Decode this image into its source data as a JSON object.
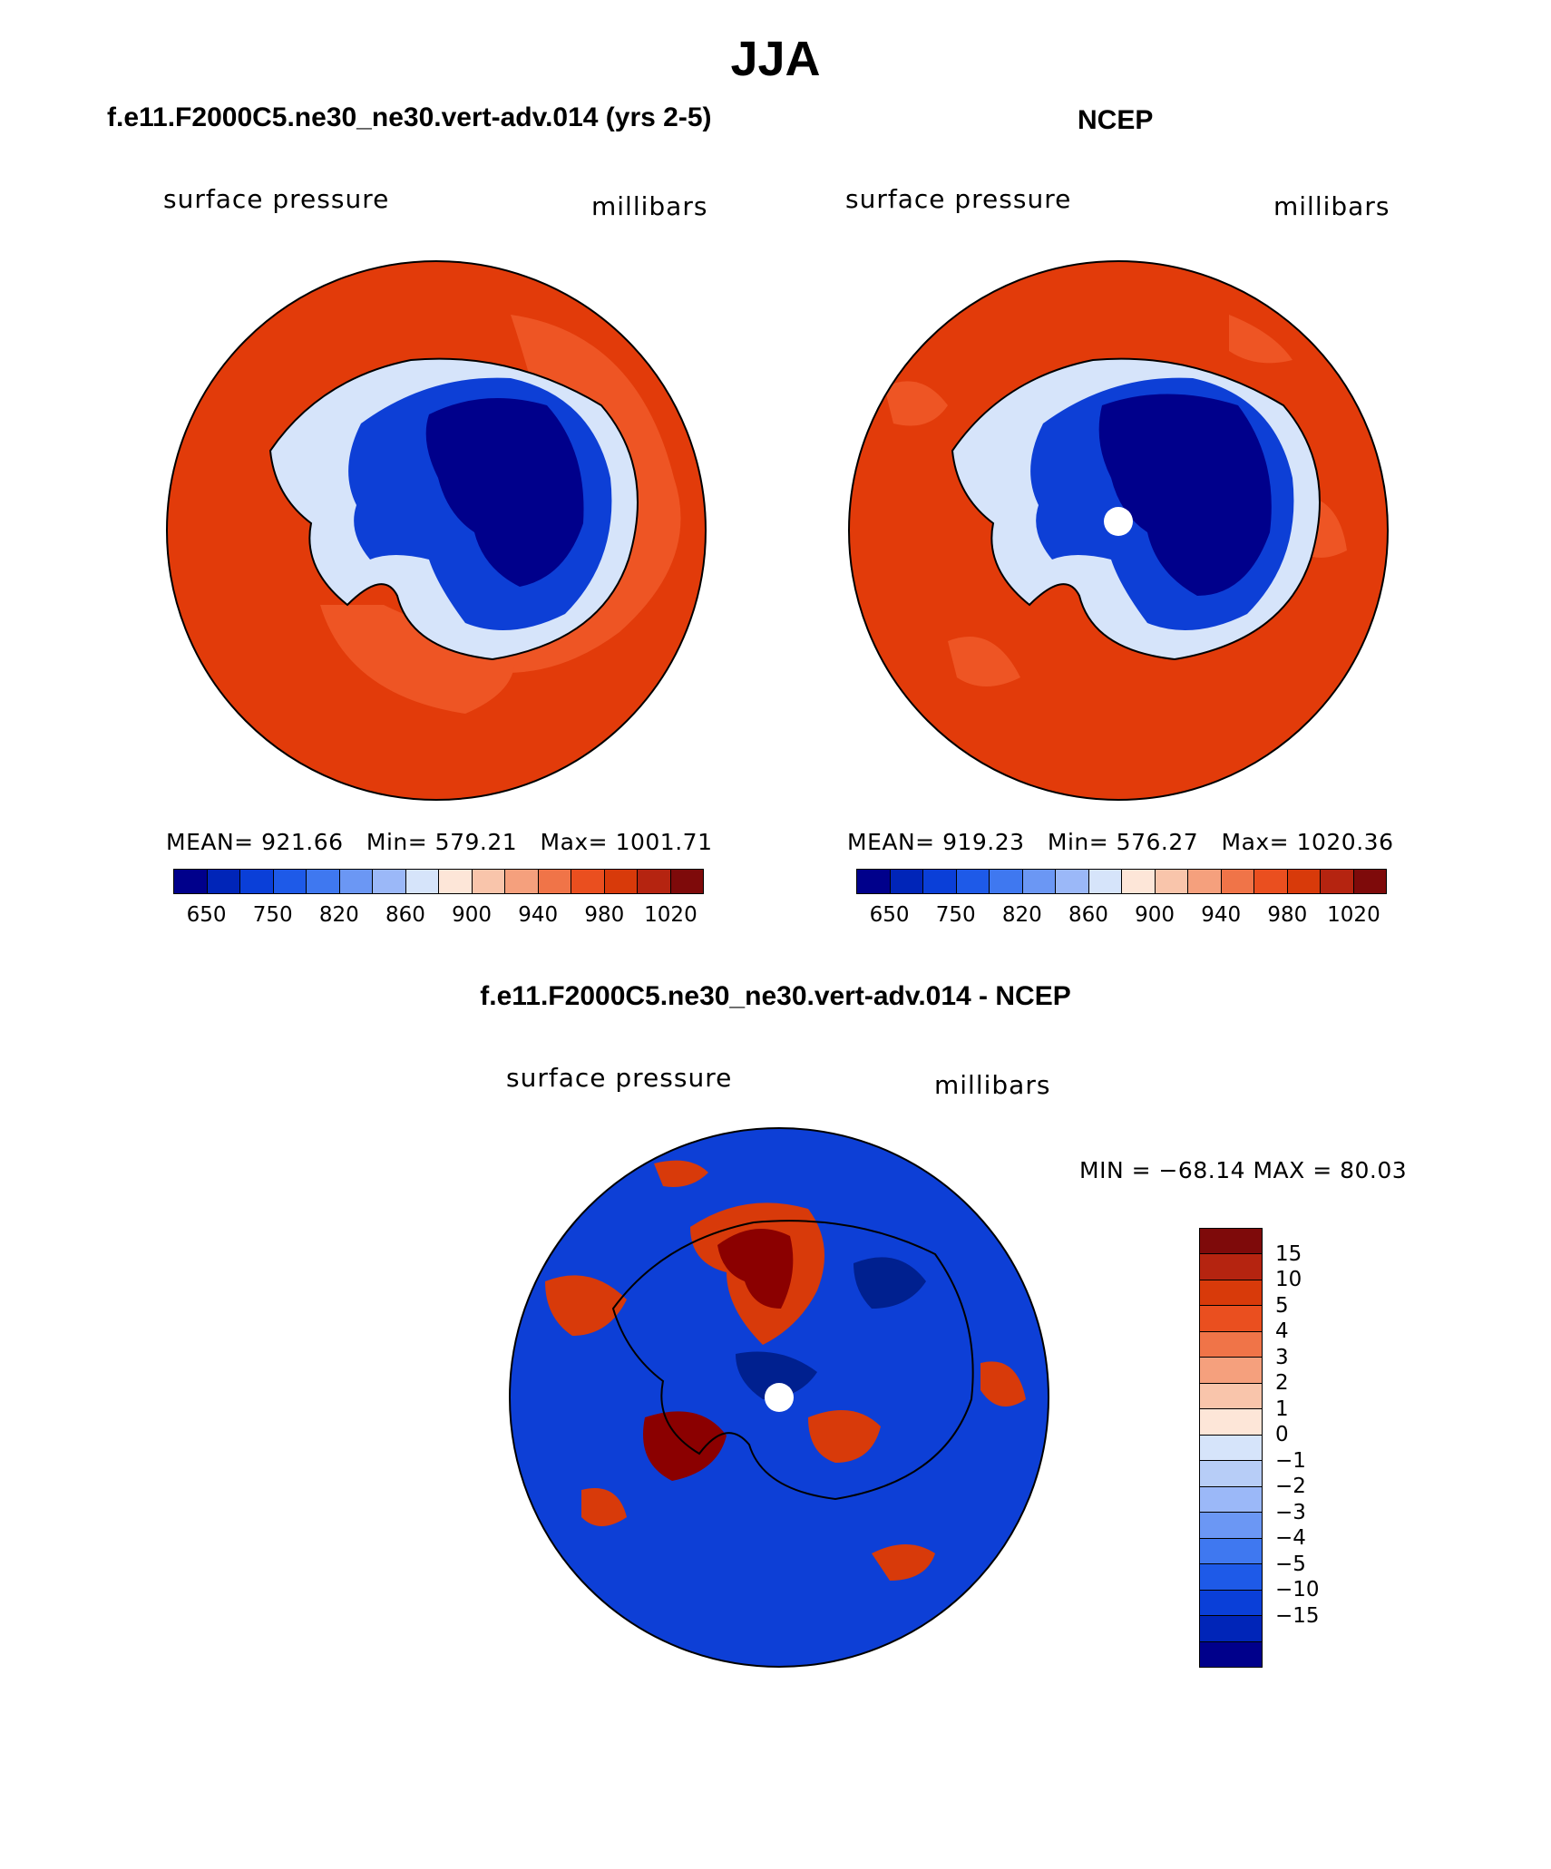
{
  "title": "JJA",
  "panels": {
    "model": {
      "title": "f.e11.F2000C5.ne30_ne30.vert-adv.014 (yrs 2-5)",
      "left_label": "surface pressure",
      "right_label": "millibars",
      "stats": {
        "mean_label": "MEAN=",
        "mean": "921.66",
        "min_label": "Min=",
        "min": "579.21",
        "max_label": "Max=",
        "max": "1001.71"
      }
    },
    "obs": {
      "title": "NCEP",
      "left_label": "surface pressure",
      "right_label": "millibars",
      "stats": {
        "mean_label": "MEAN=",
        "mean": "919.23",
        "min_label": "Min=",
        "min": "576.27",
        "max_label": "Max=",
        "max": "1020.36"
      }
    },
    "diff": {
      "title": "f.e11.F2000C5.ne30_ne30.vert-adv.014 - NCEP",
      "left_label": "surface pressure",
      "right_label": "millibars",
      "minmax": "MIN = −68.14 MAX =   80.03"
    }
  },
  "colorbar_abs": {
    "colors": [
      "#00008b",
      "#0025b8",
      "#0a3fd8",
      "#1e5ae8",
      "#3f78f0",
      "#6b97f4",
      "#9bb8f8",
      "#d6e4fa",
      "#fde6d8",
      "#f9c5ab",
      "#f5a07d",
      "#f07448",
      "#ea4f1f",
      "#d83a0a",
      "#b52410",
      "#7e0a0a"
    ],
    "labels": [
      "650",
      "750",
      "820",
      "860",
      "900",
      "940",
      "980",
      "1020"
    ]
  },
  "colorbar_diff": {
    "colors": [
      "#7e0a0a",
      "#b52410",
      "#d83a0a",
      "#ea4f1f",
      "#f07448",
      "#f5a07d",
      "#f9c5ab",
      "#fde6d8",
      "#d6e4fa",
      "#b7cdf7",
      "#9bb8f8",
      "#6b97f4",
      "#3f78f0",
      "#1e5ae8",
      "#0a3fd8",
      "#0025b8",
      "#00008b"
    ],
    "labels": [
      "15",
      "10",
      "5",
      "4",
      "3",
      "2",
      "1",
      "0",
      "−1",
      "−2",
      "−3",
      "−4",
      "−5",
      "−10",
      "−15"
    ]
  },
  "map_colors": {
    "ocean_abs": "#e23b0a",
    "ocean_abs_light": "#ee5524",
    "land_low": "#00008b",
    "land_mid": "#0d3fd6",
    "land_edge": "#3f78f0",
    "land_pale": "#d6e4fa",
    "diff_blue": "#0d3fd6",
    "diff_deepblue": "#00208f",
    "diff_red": "#d83a0a",
    "diff_darkred": "#8b0000",
    "diff_pale": "#d6e4fa",
    "pole_fill": "#ffffff"
  }
}
